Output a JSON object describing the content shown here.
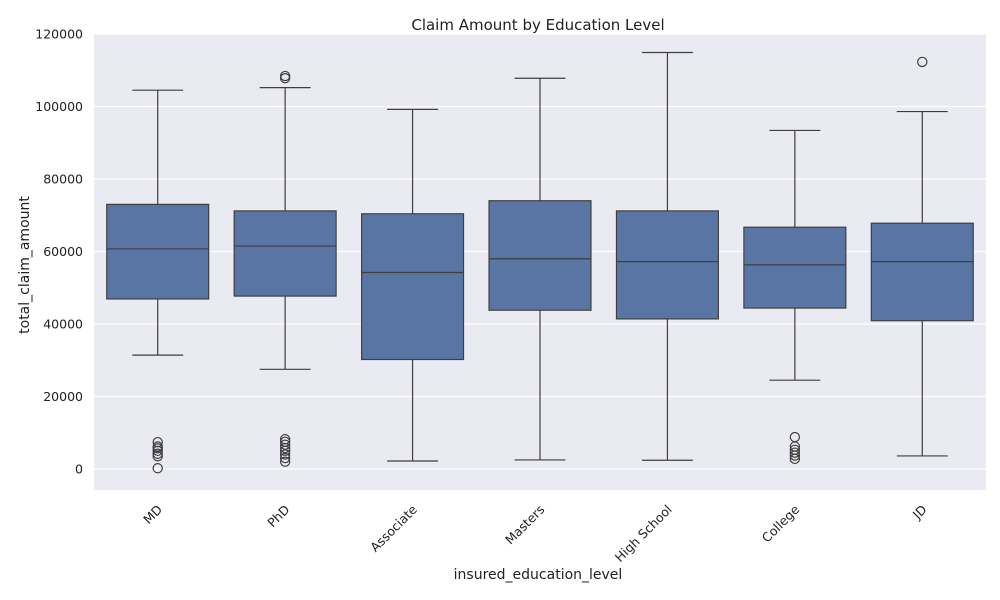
{
  "colors": {
    "plot_background": "#EAEAF2",
    "grid": "#FFFFFF",
    "box_fill": "#5975A4",
    "line": "#3F3F3F",
    "text": "#222222"
  },
  "chart_data": {
    "type": "box",
    "title": "Claim Amount by Education Level",
    "xlabel": "insured_education_level",
    "ylabel": "total_claim_amount",
    "ylim": [
      -5800,
      120000
    ],
    "yticks": [
      0,
      20000,
      40000,
      60000,
      80000,
      100000,
      120000
    ],
    "ytick_labels": [
      "0",
      "20000",
      "40000",
      "60000",
      "80000",
      "100000",
      "120000"
    ],
    "grid": true,
    "categories": [
      "MD",
      "PhD",
      "Associate",
      "Masters",
      "High School",
      "College",
      "JD"
    ],
    "boxes": [
      {
        "category": "MD",
        "whisker_low": 31400,
        "q1": 46900,
        "median": 60700,
        "q3": 73000,
        "whisker_high": 104500,
        "outliers": [
          200,
          3500,
          4200,
          5000,
          5700,
          6200,
          7400
        ]
      },
      {
        "category": "PhD",
        "whisker_low": 27500,
        "q1": 47700,
        "median": 61500,
        "q3": 71200,
        "whisker_high": 105200,
        "outliers": [
          2000,
          3000,
          4000,
          5000,
          5800,
          6700,
          7500,
          8200,
          107800,
          108400
        ]
      },
      {
        "category": "Associate",
        "whisker_low": 2200,
        "q1": 30200,
        "median": 54200,
        "q3": 70400,
        "whisker_high": 99200,
        "outliers": []
      },
      {
        "category": "Masters",
        "whisker_low": 2500,
        "q1": 43800,
        "median": 58000,
        "q3": 74000,
        "whisker_high": 107800,
        "outliers": []
      },
      {
        "category": "High School",
        "whisker_low": 2400,
        "q1": 41400,
        "median": 57200,
        "q3": 71200,
        "whisker_high": 114900,
        "outliers": []
      },
      {
        "category": "College",
        "whisker_low": 24500,
        "q1": 44400,
        "median": 56300,
        "q3": 66700,
        "whisker_high": 93400,
        "outliers": [
          2800,
          3700,
          4500,
          5300,
          6200,
          8800
        ]
      },
      {
        "category": "JD",
        "whisker_low": 3600,
        "q1": 40900,
        "median": 57200,
        "q3": 67800,
        "whisker_high": 98600,
        "outliers": [
          112300
        ]
      }
    ]
  }
}
